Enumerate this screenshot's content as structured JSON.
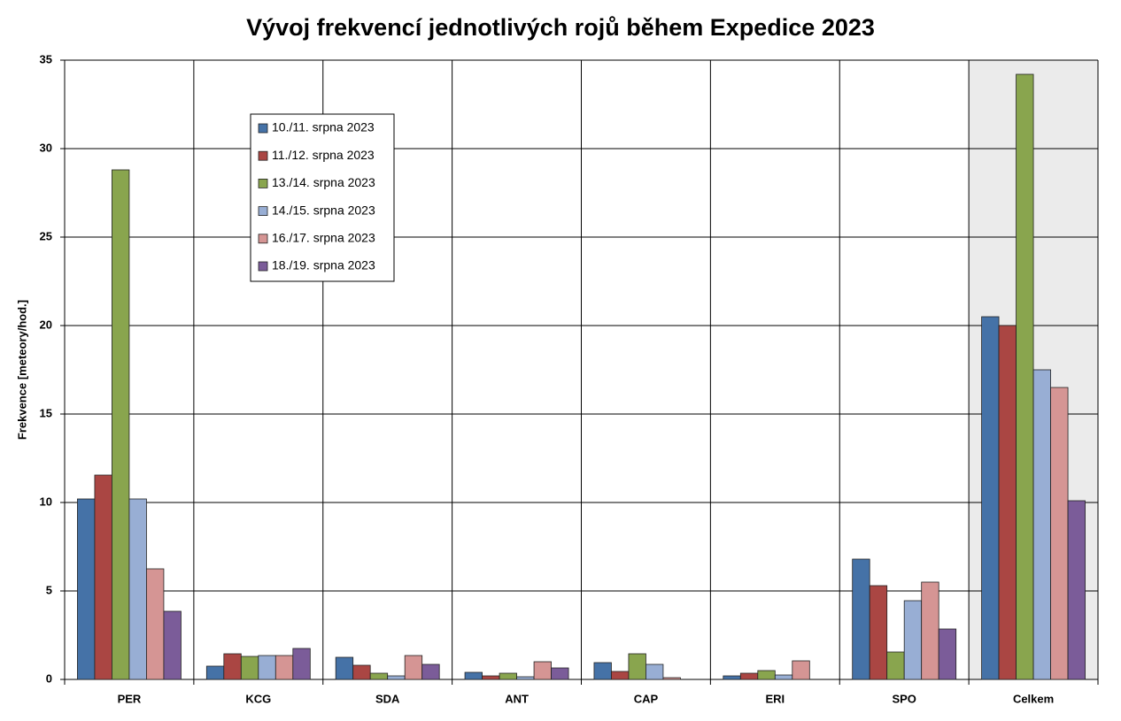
{
  "chart_data": {
    "type": "bar",
    "title": "Vývoj frekvencí jednotlivých rojů během Expedice 2023",
    "y_label": "Frekvence [meteory/hod.]",
    "categories": [
      "PER",
      "KCG",
      "SDA",
      "ANT",
      "CAP",
      "ERI",
      "SPO",
      "Celkem"
    ],
    "series": [
      {
        "name": "10./11. srpna 2023",
        "color": "#4572a7",
        "values": [
          10.2,
          0.75,
          1.25,
          0.4,
          0.95,
          0.2,
          6.8,
          20.5
        ]
      },
      {
        "name": "11./12. srpna 2023",
        "color": "#aa4643",
        "values": [
          11.55,
          1.45,
          0.8,
          0.2,
          0.45,
          0.35,
          5.3,
          20.0
        ]
      },
      {
        "name": "13./14. srpna 2023",
        "color": "#89a54e",
        "values": [
          28.8,
          1.3,
          0.35,
          0.35,
          1.45,
          0.5,
          1.55,
          34.2
        ]
      },
      {
        "name": "14./15. srpna 2023",
        "color": "#98aed4",
        "values": [
          10.2,
          1.35,
          0.2,
          0.15,
          0.85,
          0.25,
          4.45,
          17.5
        ]
      },
      {
        "name": "16./17. srpna 2023",
        "color": "#d59594",
        "values": [
          6.25,
          1.35,
          1.35,
          1.0,
          0.1,
          1.05,
          5.5,
          16.5
        ]
      },
      {
        "name": "18./19. srpna 2023",
        "color": "#7b5c99",
        "values": [
          3.85,
          1.75,
          0.85,
          0.65,
          null,
          null,
          2.85,
          10.1
        ]
      }
    ],
    "ylim": [
      0,
      35
    ],
    "yticks": [
      0,
      5,
      10,
      15,
      20,
      25,
      30,
      35
    ],
    "grid": true
  }
}
